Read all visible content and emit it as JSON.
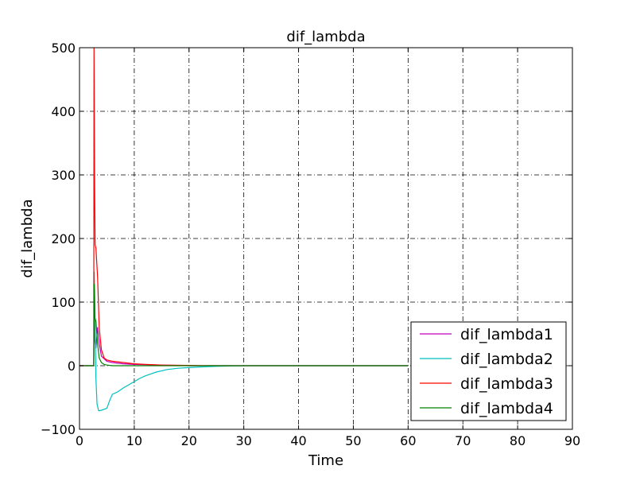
{
  "chart_data": {
    "type": "line",
    "title": "dif_lambda",
    "xlabel": "Time",
    "ylabel": "dif_lambda",
    "xlim": [
      0,
      90
    ],
    "ylim": [
      -100,
      500
    ],
    "xticks": [
      0,
      10,
      20,
      30,
      40,
      50,
      60,
      70,
      80,
      90
    ],
    "yticks": [
      -100,
      0,
      100,
      200,
      300,
      400,
      500
    ],
    "xtick_labels": [
      "0",
      "10",
      "20",
      "30",
      "40",
      "50",
      "60",
      "70",
      "80",
      "90"
    ],
    "ytick_labels": [
      "−100",
      "0",
      "100",
      "200",
      "300",
      "400",
      "500"
    ],
    "grid": true,
    "legend_position": "lower-right",
    "series": [
      {
        "name": "dif_lambda1",
        "color": "#bf00bf",
        "x": [
          0,
          2.6,
          2.7,
          2.8,
          3.0,
          3.3,
          3.6,
          4.0,
          5,
          6,
          8,
          10,
          15,
          20,
          30,
          60
        ],
        "y": [
          0,
          0,
          75,
          40,
          28,
          60,
          35,
          15,
          7,
          5,
          3,
          2,
          1,
          0,
          0,
          0
        ]
      },
      {
        "name": "dif_lambda2",
        "color": "#00bfbf",
        "x": [
          0,
          2.6,
          2.7,
          2.8,
          2.9,
          3.0,
          3.2,
          3.5,
          4.0,
          5.0,
          5.5,
          6.0,
          7.0,
          8.0,
          9.0,
          10.0,
          11.0,
          12.0,
          13.0,
          14.0,
          15.0,
          16.0,
          18.0,
          20.0,
          22.0,
          25.0,
          30.0,
          60.0
        ],
        "y": [
          0,
          0,
          147,
          100,
          40,
          -20,
          -60,
          -71,
          -70,
          -67,
          -55,
          -45,
          -41,
          -35,
          -30,
          -25,
          -20,
          -16,
          -13,
          -10,
          -8,
          -6,
          -4,
          -3,
          -2,
          -1,
          0,
          0
        ]
      },
      {
        "name": "dif_lambda3",
        "color": "#ff0000",
        "x": [
          0,
          2.6,
          2.65,
          2.75,
          2.85,
          3.0,
          3.3,
          3.6,
          4.0,
          4.5,
          5,
          6,
          8,
          10,
          12,
          15,
          20,
          25,
          30,
          60
        ],
        "y": [
          0,
          0,
          500,
          300,
          190,
          185,
          140,
          60,
          25,
          12,
          9,
          7,
          5,
          3,
          2,
          1,
          0.5,
          0,
          0,
          0
        ]
      },
      {
        "name": "dif_lambda4",
        "color": "#008000",
        "x": [
          0,
          2.6,
          2.7,
          2.8,
          3.0,
          3.3,
          3.6,
          4.0,
          4.5,
          5,
          6,
          8,
          10,
          20,
          60
        ],
        "y": [
          0,
          0,
          128,
          75,
          70,
          35,
          12,
          5,
          2,
          1,
          0,
          0,
          0,
          0,
          0
        ]
      }
    ]
  }
}
